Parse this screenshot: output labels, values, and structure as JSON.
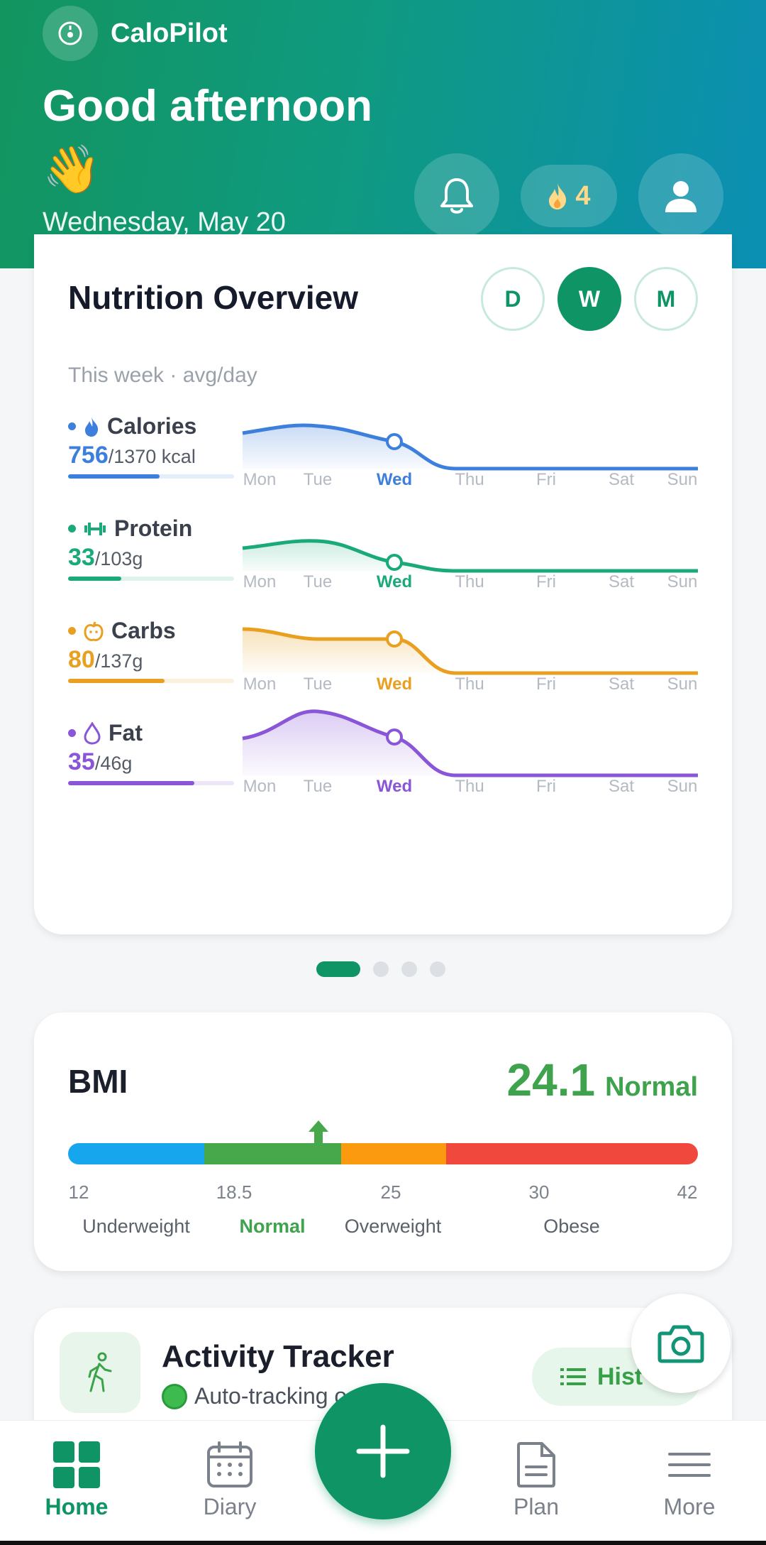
{
  "app": {
    "name": "CaloPilot"
  },
  "header": {
    "greeting": "Good afternoon",
    "emoji": "👋",
    "date": "Wednesday, May 20",
    "streak_count": "4"
  },
  "nutrition": {
    "title": "Nutrition Overview",
    "ranges": [
      "D",
      "W",
      "M"
    ],
    "active_range": "W",
    "subtitle": "This week · avg/day",
    "days": [
      "Mon",
      "Tue",
      "Wed",
      "Thu",
      "Fri",
      "Sat",
      "Sun"
    ],
    "current_day": "Wed",
    "metrics": [
      {
        "name": "Calories",
        "value": "756",
        "target": "/1370 kcal",
        "progress": 0.55,
        "color": "#3d7fdc",
        "icon": "flame-icon"
      },
      {
        "name": "Protein",
        "value": "33",
        "target": "/103g",
        "progress": 0.32,
        "color": "#1aa97a",
        "icon": "dumbbell-icon"
      },
      {
        "name": "Carbs",
        "value": "80",
        "target": "/137g",
        "progress": 0.58,
        "color": "#e9a020",
        "icon": "apple-icon"
      },
      {
        "name": "Fat",
        "value": "35",
        "target": "/46g",
        "progress": 0.76,
        "color": "#8a56d8",
        "icon": "droplet-icon"
      }
    ]
  },
  "pager": {
    "pages": 4,
    "active": 0
  },
  "bmi": {
    "title": "BMI",
    "value": "24.1",
    "status": "Normal",
    "ticks": [
      "12",
      "18.5",
      "25",
      "30",
      "42"
    ],
    "categories": [
      "Underweight",
      "Normal",
      "Overweight",
      "Obese"
    ],
    "active_category": "Normal",
    "colors": [
      "#16a6ee",
      "#47a84b",
      "#fb9a0e",
      "#f0483c"
    ]
  },
  "activity": {
    "title": "Activity Tracker",
    "subtitle": "Auto-tracking o",
    "history_label": "Hist"
  },
  "nav": {
    "items": [
      {
        "label": "Home",
        "icon": "grid-icon",
        "active": true
      },
      {
        "label": "Diary",
        "icon": "calendar-icon",
        "active": false
      },
      {
        "label": "Plan",
        "icon": "document-icon",
        "active": false
      },
      {
        "label": "More",
        "icon": "menu-icon",
        "active": false
      }
    ]
  }
}
